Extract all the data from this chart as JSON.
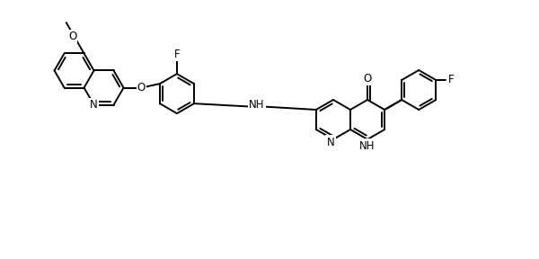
{
  "bg": "#ffffff",
  "lw": 1.4,
  "bl": 22,
  "figsize": [
    6.0,
    2.88
  ],
  "dpi": 100,
  "atom_labels": {
    "N_quin": "N",
    "O_meth": "O",
    "O_bridge": "O",
    "F_top": "F",
    "NH_link": "NH",
    "O_keto": "O",
    "NH_naph": "NH",
    "N_naph": "N",
    "F_fp": "F"
  }
}
